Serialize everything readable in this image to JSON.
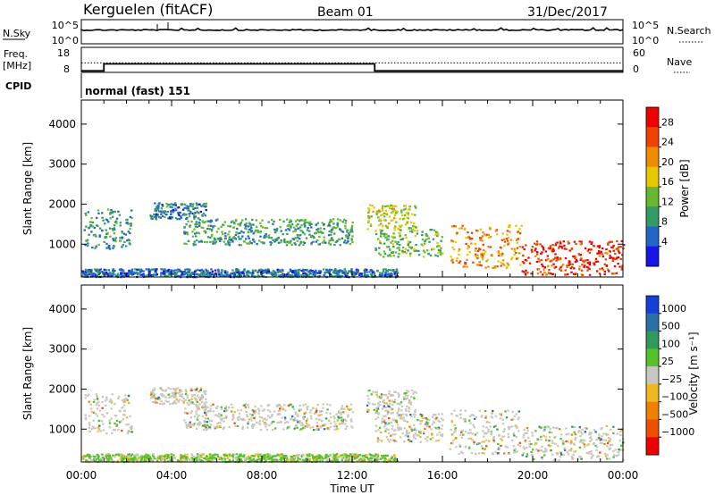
{
  "header": {
    "station": "Kerguelen (fitACF)",
    "beam": "Beam 01",
    "date": "31/Dec/2017"
  },
  "noise_panel": {
    "left_label": "N.Sky",
    "left_ticks": [
      "10^5",
      "10^0"
    ],
    "right_ticks": [
      "10^5",
      "10^0"
    ],
    "right_label": "N.Search"
  },
  "freq_panel": {
    "left_label_1": "Freq.",
    "left_label_2": "[MHz]",
    "left_ticks": [
      "18",
      "8"
    ],
    "right_ticks": [
      "60",
      "0"
    ],
    "right_label": "Nave",
    "freq_steps_utc": [
      [
        0,
        8.6
      ],
      [
        1.0,
        11.4
      ],
      [
        13.0,
        8.6
      ],
      [
        24,
        8.6
      ]
    ],
    "nave_level": 11.8
  },
  "cpid": {
    "label": "CPID",
    "mode": "normal (fast) 151"
  },
  "chart_data": [
    {
      "type": "heatmap",
      "name": "power",
      "ylabel": "Slant Range [km]",
      "xlabel": "Time UT",
      "ylim": [
        180,
        4600
      ],
      "xlim": [
        0,
        24
      ],
      "y_ticks": [
        "1000",
        "2000",
        "3000",
        "4000"
      ],
      "y_tick_values": [
        1000,
        2000,
        3000,
        4000
      ],
      "x_tick_labels": [
        "00:00",
        "04:00",
        "08:00",
        "12:00",
        "16:00",
        "20:00",
        "00:00"
      ],
      "x_tick_values": [
        0,
        4,
        8,
        12,
        16,
        20,
        24
      ],
      "colorbar": {
        "label": "Power [dB]",
        "range": [
          0,
          32
        ],
        "tick_labels": [
          "4",
          "8",
          "12",
          "16",
          "20",
          "24",
          "28"
        ],
        "tick_values": [
          4,
          8,
          12,
          16,
          20,
          24,
          28
        ],
        "colors": [
          "#1515e6",
          "#2266c8",
          "#339b66",
          "#66b833",
          "#e6c800",
          "#f08c00",
          "#ee4400",
          "#ee0000"
        ]
      },
      "regions": [
        {
          "t": [
            0.1,
            2.2
          ],
          "r": [
            900,
            1900
          ],
          "level": 9
        },
        {
          "t": [
            3.0,
            5.5
          ],
          "r": [
            1650,
            2050
          ],
          "level": 8
        },
        {
          "t": [
            4.5,
            12.0
          ],
          "r": [
            1000,
            1650
          ],
          "level": 11
        },
        {
          "t": [
            12.6,
            14.8
          ],
          "r": [
            1400,
            2000
          ],
          "level": 17
        },
        {
          "t": [
            13.0,
            16.0
          ],
          "r": [
            700,
            1400
          ],
          "level": 13
        },
        {
          "t": [
            16.3,
            19.5
          ],
          "r": [
            400,
            1500
          ],
          "level": 22
        },
        {
          "t": [
            19.5,
            24.0
          ],
          "r": [
            250,
            1100
          ],
          "level": 28
        },
        {
          "t": [
            0.0,
            14.0
          ],
          "r": [
            200,
            400
          ],
          "level": 7
        }
      ]
    },
    {
      "type": "heatmap",
      "name": "velocity",
      "ylabel": "Slant Range [km]",
      "xlabel": "Time UT",
      "ylim": [
        180,
        4600
      ],
      "xlim": [
        0,
        24
      ],
      "y_ticks": [
        "1000",
        "2000",
        "3000",
        "4000"
      ],
      "y_tick_values": [
        1000,
        2000,
        3000,
        4000
      ],
      "x_tick_labels": [
        "00:00",
        "04:00",
        "08:00",
        "12:00",
        "16:00",
        "20:00",
        "00:00"
      ],
      "x_tick_values": [
        0,
        4,
        8,
        12,
        16,
        20,
        24
      ],
      "colorbar": {
        "label": "Velocity [m s⁻¹]",
        "tick_labels": [
          "1000",
          "500",
          "100",
          "25",
          "−25",
          "−100",
          "−500",
          "−1000"
        ],
        "colors": [
          "#1540d8",
          "#2a6fa6",
          "#2e9a5a",
          "#55c22a",
          "#c8c8c0",
          "#f0b820",
          "#f08000",
          "#ee5000",
          "#ee0000"
        ]
      },
      "regions": [
        {
          "t": [
            0.1,
            2.2
          ],
          "r": [
            900,
            1900
          ],
          "level": 4
        },
        {
          "t": [
            3.0,
            5.5
          ],
          "r": [
            1650,
            2050
          ],
          "level": 4
        },
        {
          "t": [
            4.5,
            12.0
          ],
          "r": [
            1000,
            1650
          ],
          "level": 4
        },
        {
          "t": [
            12.6,
            14.8
          ],
          "r": [
            1400,
            2000
          ],
          "level": 4
        },
        {
          "t": [
            13.0,
            16.0
          ],
          "r": [
            700,
            1400
          ],
          "level": 4
        },
        {
          "t": [
            16.3,
            19.5
          ],
          "r": [
            400,
            1500
          ],
          "level": 4
        },
        {
          "t": [
            19.5,
            24.0
          ],
          "r": [
            250,
            1100
          ],
          "level": 4
        },
        {
          "t": [
            0.0,
            14.0
          ],
          "r": [
            200,
            400
          ],
          "level": 3
        }
      ]
    }
  ]
}
